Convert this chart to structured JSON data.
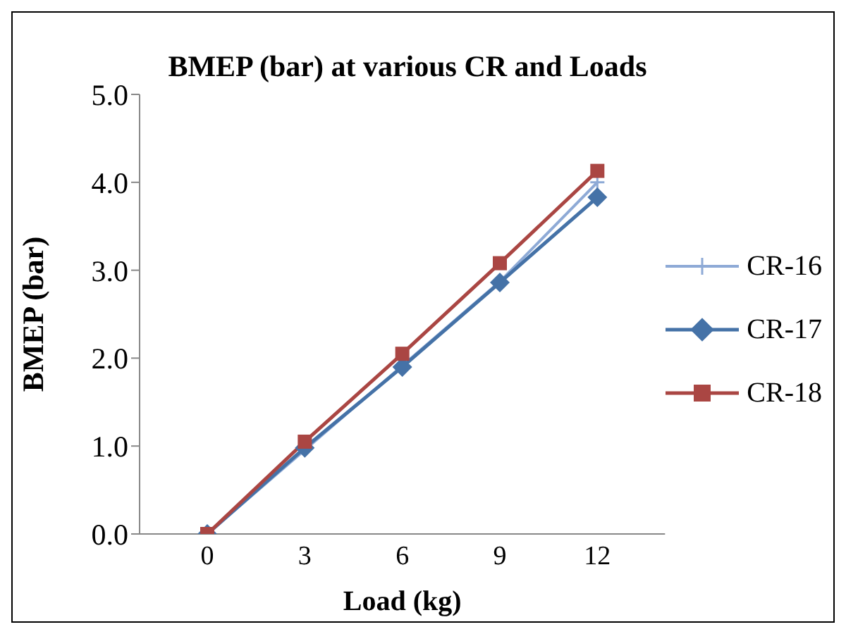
{
  "chart_data": {
    "type": "line",
    "title": "BMEP (bar) at various CR and Loads",
    "xlabel": "Load (kg)",
    "ylabel": "BMEP (bar)",
    "categories": [
      "0",
      "3",
      "6",
      "9",
      "12"
    ],
    "series": [
      {
        "name": "CR-16",
        "color": "#8eaad6",
        "marker": "cross",
        "values": [
          0,
          null,
          null,
          2.87,
          4.0
        ]
      },
      {
        "name": "CR-17",
        "color": "#4572a7",
        "marker": "diamond",
        "values": [
          0,
          0.98,
          1.9,
          2.86,
          3.83
        ]
      },
      {
        "name": "CR-18",
        "color": "#aa4643",
        "marker": "square",
        "values": [
          0,
          1.05,
          2.05,
          3.08,
          4.13
        ]
      }
    ],
    "ylim": [
      0,
      5
    ],
    "yticks": [
      {
        "value": 0,
        "label": "0.0"
      },
      {
        "value": 1,
        "label": "1.0"
      },
      {
        "value": 2,
        "label": "2.0"
      },
      {
        "value": 3,
        "label": "3.0"
      },
      {
        "value": 4,
        "label": "4.0"
      },
      {
        "value": 5,
        "label": "5.0"
      }
    ],
    "grid": false,
    "legend": "right",
    "line_style": "solid"
  }
}
